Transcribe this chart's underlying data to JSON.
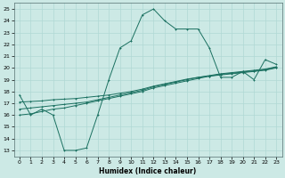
{
  "xlabel": "Humidex (Indice chaleur)",
  "x_ticks": [
    0,
    1,
    2,
    3,
    4,
    5,
    6,
    7,
    8,
    9,
    10,
    11,
    12,
    13,
    14,
    15,
    16,
    17,
    18,
    19,
    20,
    21,
    22,
    23
  ],
  "y_ticks": [
    13,
    14,
    15,
    16,
    17,
    18,
    19,
    20,
    21,
    22,
    23,
    24,
    25
  ],
  "xlim": [
    -0.5,
    23.5
  ],
  "ylim": [
    12.5,
    25.5
  ],
  "bg_color": "#cce9e5",
  "grid_color": "#b0d8d4",
  "line_color": "#1a7060",
  "line1_x": [
    0,
    1,
    2,
    3,
    4,
    5,
    6,
    7,
    8,
    9,
    10,
    11,
    12,
    13,
    14,
    15,
    16,
    17,
    18,
    19,
    20,
    21,
    22,
    23
  ],
  "line1_y": [
    17.7,
    16.0,
    16.5,
    16.0,
    13.0,
    13.0,
    13.2,
    16.0,
    19.0,
    21.7,
    22.3,
    24.5,
    25.0,
    24.0,
    23.3,
    23.3,
    23.3,
    21.7,
    19.2,
    19.2,
    19.7,
    19.0,
    20.7,
    20.3
  ],
  "line2_x": [
    0,
    1,
    2,
    3,
    4,
    5,
    6,
    7,
    8,
    9,
    10,
    11,
    12,
    13,
    14,
    15,
    16,
    17,
    18,
    19,
    20,
    21,
    22,
    23
  ],
  "line2_y": [
    16.0,
    16.1,
    16.3,
    16.5,
    16.6,
    16.8,
    17.0,
    17.2,
    17.4,
    17.6,
    17.8,
    18.0,
    18.3,
    18.5,
    18.7,
    18.9,
    19.1,
    19.3,
    19.4,
    19.5,
    19.6,
    19.7,
    19.8,
    20.0
  ],
  "line3_x": [
    0,
    1,
    2,
    3,
    4,
    5,
    6,
    7,
    8,
    9,
    10,
    11,
    12,
    13,
    14,
    15,
    16,
    17,
    18,
    19,
    20,
    21,
    22,
    23
  ],
  "line3_y": [
    16.5,
    16.6,
    16.7,
    16.8,
    16.9,
    17.0,
    17.1,
    17.3,
    17.5,
    17.7,
    17.9,
    18.1,
    18.4,
    18.6,
    18.8,
    19.0,
    19.2,
    19.3,
    19.45,
    19.55,
    19.65,
    19.75,
    19.85,
    20.05
  ],
  "line4_x": [
    0,
    1,
    2,
    3,
    4,
    5,
    6,
    7,
    8,
    9,
    10,
    11,
    12,
    13,
    14,
    15,
    16,
    17,
    18,
    19,
    20,
    21,
    22,
    23
  ],
  "line4_y": [
    17.1,
    17.15,
    17.2,
    17.3,
    17.35,
    17.4,
    17.5,
    17.6,
    17.7,
    17.85,
    18.0,
    18.2,
    18.45,
    18.65,
    18.85,
    19.05,
    19.2,
    19.35,
    19.5,
    19.6,
    19.7,
    19.8,
    19.9,
    20.1
  ]
}
